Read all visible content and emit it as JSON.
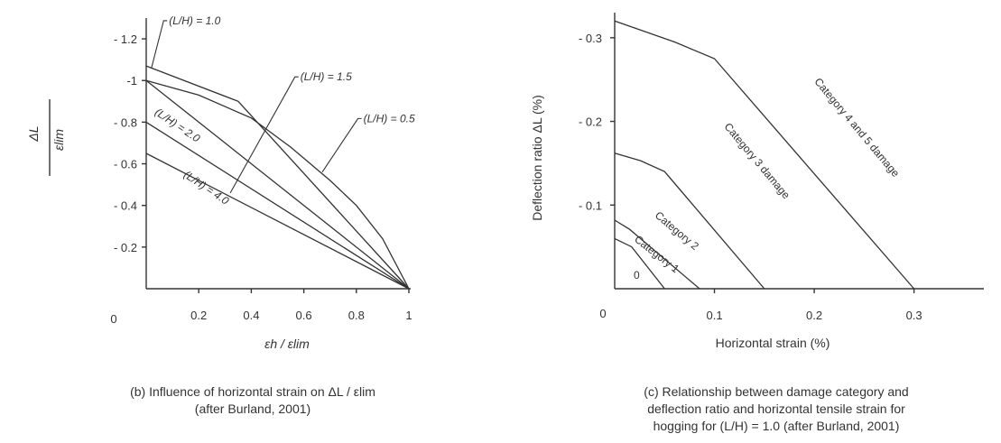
{
  "chart_data": [
    {
      "type": "line",
      "panel": "b",
      "caption_line1": "(b) Influence of horizontal strain on ΔL / εlim",
      "caption_line2": "(after Burland, 2001)",
      "ylabel_num": "ΔL",
      "ylabel_den": "εlim",
      "xlabel": "εh / εlim",
      "origin_label": "0",
      "xlim": [
        0,
        1.0
      ],
      "ylim": [
        0,
        -1.3
      ],
      "x_ticks": [
        {
          "v": 0.2,
          "t": "0.2"
        },
        {
          "v": 0.4,
          "t": "0.4"
        },
        {
          "v": 0.6,
          "t": "0.6"
        },
        {
          "v": 0.8,
          "t": "0.8"
        },
        {
          "v": 1.0,
          "t": "1"
        }
      ],
      "y_ticks": [
        {
          "v": -0.2,
          "t": "- 0.2"
        },
        {
          "v": -0.4,
          "t": "- 0.4"
        },
        {
          "v": -0.6,
          "t": "- 0.6"
        },
        {
          "v": -0.8,
          "t": "- 0.8"
        },
        {
          "v": -1.0,
          "t": "-1"
        },
        {
          "v": -1.2,
          "t": "- 1.2"
        }
      ],
      "series": [
        {
          "name": "(L/H) = 1.0",
          "x": [
            0,
            0.35,
            1.0
          ],
          "y": [
            -1.07,
            -0.9,
            0
          ]
        },
        {
          "name": "(L/H) = 0.5",
          "x": [
            0,
            0.2,
            0.4,
            0.55,
            0.7,
            0.8,
            0.9,
            1.0
          ],
          "y": [
            -1.0,
            -0.93,
            -0.82,
            -0.68,
            -0.52,
            -0.4,
            -0.24,
            0
          ]
        },
        {
          "name": "(L/H) = 1.5",
          "x": [
            0,
            1.0
          ],
          "y": [
            -1.0,
            0
          ]
        },
        {
          "name": "(L/H) = 2.0",
          "x": [
            0,
            1.0
          ],
          "y": [
            -0.8,
            0
          ]
        },
        {
          "name": "(L/H) = 4.0",
          "x": [
            0,
            1.0
          ],
          "y": [
            -0.65,
            0
          ]
        }
      ],
      "labels": [
        {
          "text": "(L/H) = 1.0",
          "lx": 0.08,
          "ly": -1.27,
          "ax": 0.02,
          "ay": -1.06
        },
        {
          "text": "(L/H) = 1.5",
          "lx": 0.58,
          "ly": -1.0,
          "ax": 0.32,
          "ay": -0.46
        },
        {
          "text": "(L/H) = 0.5",
          "lx": 0.82,
          "ly": -0.8,
          "ax": 0.67,
          "ay": -0.56
        }
      ],
      "inline_labels": [
        {
          "text": "(L/H) = 2.0",
          "x": 0.03,
          "y": -0.84
        },
        {
          "text": "(L/H) = 4.0",
          "x": 0.14,
          "y": -0.54
        }
      ]
    },
    {
      "type": "area",
      "panel": "c",
      "caption_line1": "(c) Relationship between damage category and",
      "caption_line2": "deflection ratio and horizontal tensile strain for",
      "caption_line3": "hogging for (L/H) = 1.0 (after Burland, 2001)",
      "ylabel": "Deflection ratio ΔL (%)",
      "xlabel": "Horizontal strain (%)",
      "origin_label": "0",
      "xlim": [
        0,
        0.37
      ],
      "ylim": [
        0,
        0.33
      ],
      "x_ticks": [
        {
          "v": 0.1,
          "t": "0.1"
        },
        {
          "v": 0.2,
          "t": "0.2"
        },
        {
          "v": 0.3,
          "t": "0.3"
        }
      ],
      "y_ticks": [
        {
          "v": 0.1,
          "t": "- 0.1"
        },
        {
          "v": 0.2,
          "t": "- 0.2"
        },
        {
          "v": 0.3,
          "t": "- 0.3"
        }
      ],
      "boundaries": [
        {
          "x": [
            0,
            0.017,
            0.05
          ],
          "y": [
            0.06,
            0.05,
            0
          ]
        },
        {
          "x": [
            0,
            0.015,
            0.085
          ],
          "y": [
            0.082,
            0.071,
            0
          ]
        },
        {
          "x": [
            0,
            0.026,
            0.05,
            0.15
          ],
          "y": [
            0.162,
            0.153,
            0.14,
            0
          ]
        },
        {
          "x": [
            0,
            0.06,
            0.1,
            0.3
          ],
          "y": [
            0.32,
            0.295,
            0.275,
            0
          ]
        }
      ],
      "regions": [
        {
          "text": "0",
          "x": 0.022,
          "y": 0.012,
          "rot": 0
        },
        {
          "text": "Category 1",
          "x": 0.04,
          "y": 0.038,
          "rot": 38
        },
        {
          "text": "Category 2",
          "x": 0.06,
          "y": 0.066,
          "rot": 40
        },
        {
          "text": "Category 3 damage",
          "x": 0.14,
          "y": 0.15,
          "rot": 50
        },
        {
          "text": "Category 4 and 5 damage",
          "x": 0.24,
          "y": 0.19,
          "rot": 50
        }
      ]
    }
  ]
}
